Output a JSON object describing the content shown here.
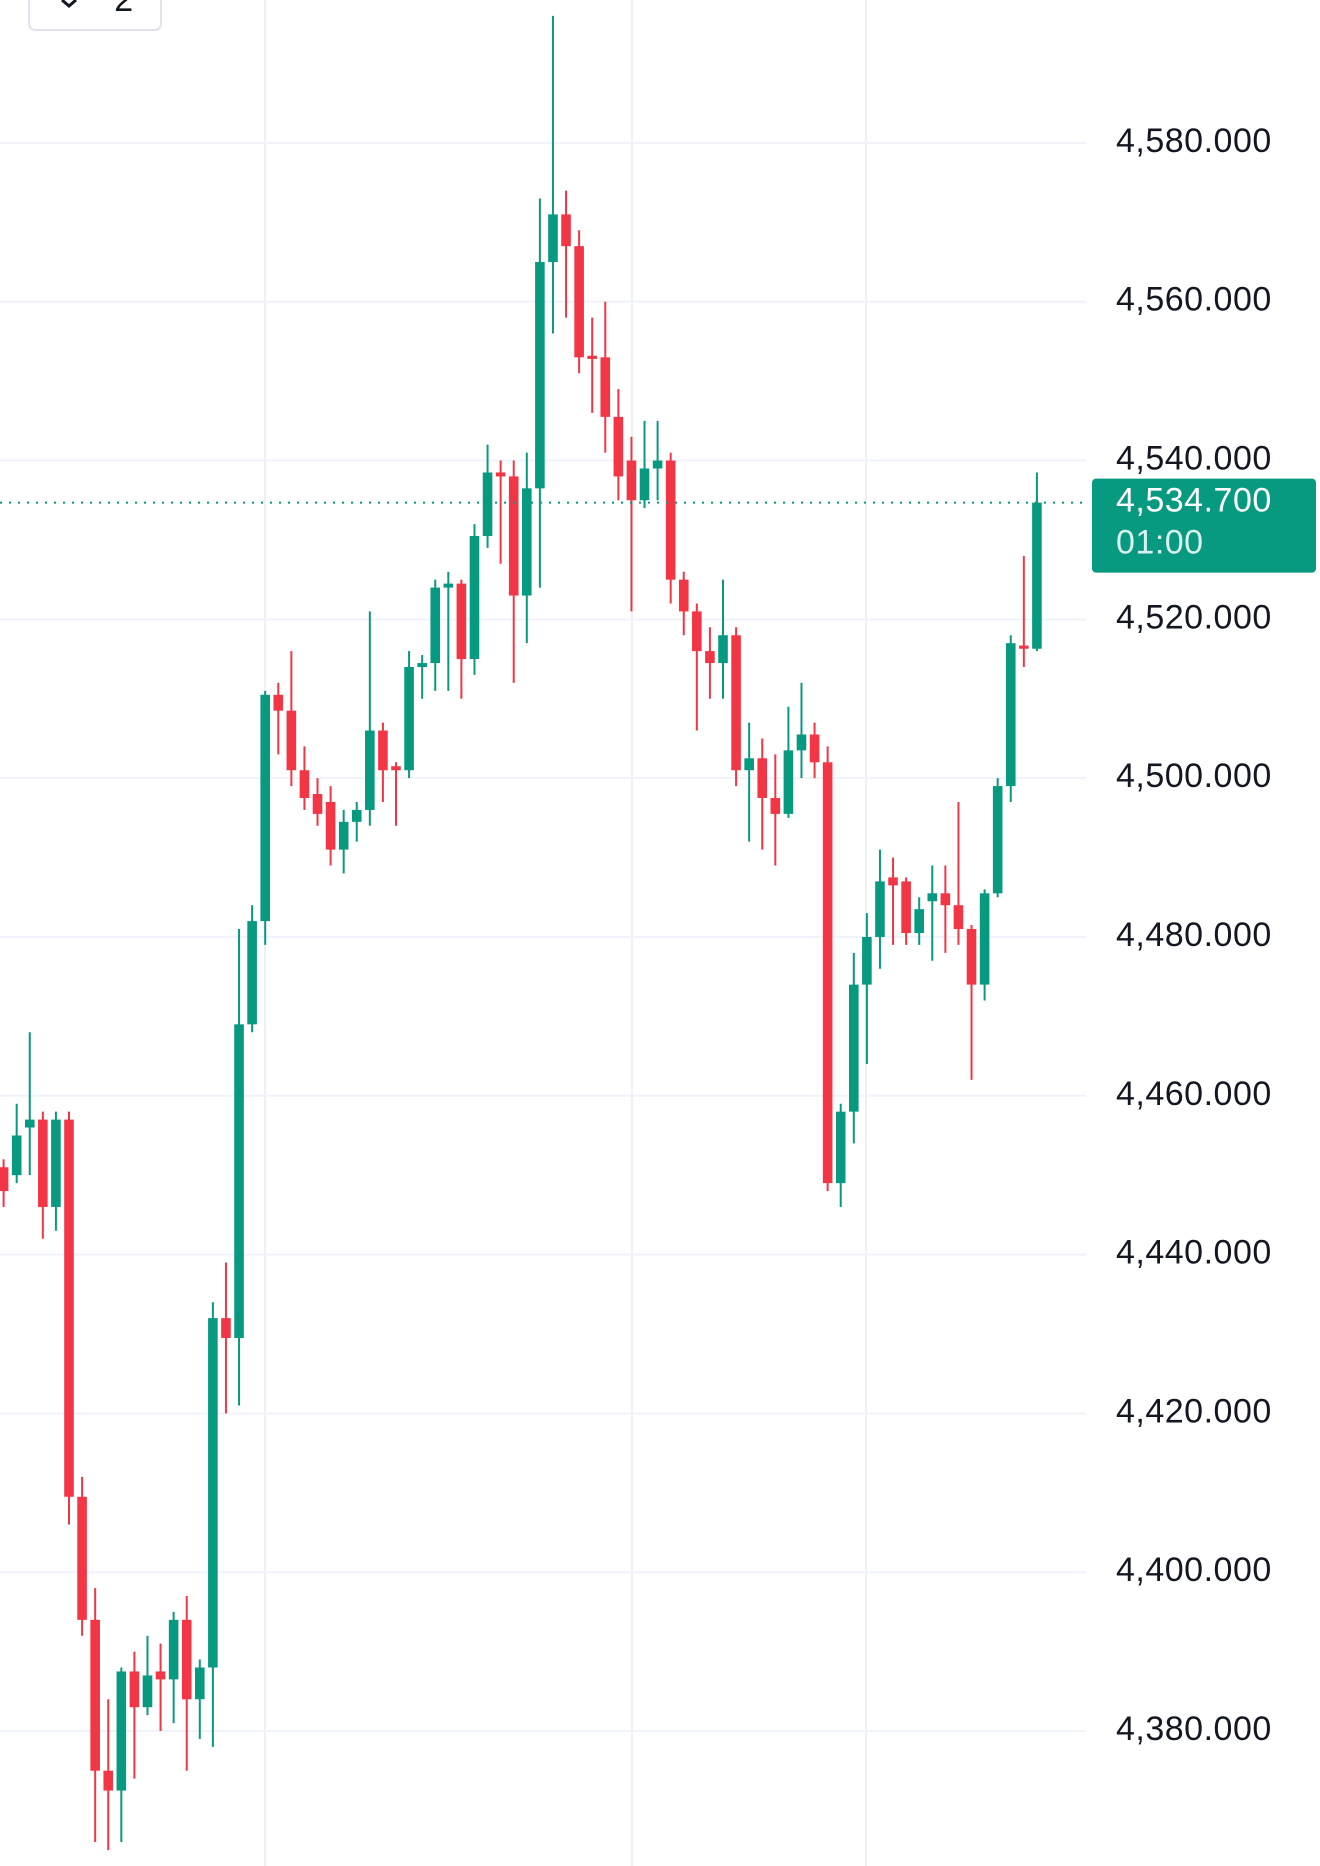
{
  "toolbar_badge": "2",
  "chart_data": {
    "type": "candlestick",
    "up_color": "#089981",
    "down_color": "#f23645",
    "grid": true,
    "ylim": [
      4363,
      4598
    ],
    "yticks": [
      {
        "value": 4380,
        "label": "4,380.000"
      },
      {
        "value": 4400,
        "label": "4,400.000"
      },
      {
        "value": 4420,
        "label": "4,420.000"
      },
      {
        "value": 4440,
        "label": "4,440.000"
      },
      {
        "value": 4460,
        "label": "4,460.000"
      },
      {
        "value": 4480,
        "label": "4,480.000"
      },
      {
        "value": 4500,
        "label": "4,500.000"
      },
      {
        "value": 4520,
        "label": "4,520.000"
      },
      {
        "value": 4540,
        "label": "4,540.000"
      },
      {
        "value": 4560,
        "label": "4,560.000"
      },
      {
        "value": 4580,
        "label": "4,580.000"
      }
    ],
    "last_price": {
      "value": 4534.7,
      "label": "4,534.700"
    },
    "countdown": "01:00",
    "open": [
      4451,
      4450,
      4456,
      4457,
      4446,
      4457,
      4409.5,
      4394,
      4375,
      4372.5,
      4387.5,
      4383,
      4387.5,
      4386.5,
      4394,
      4384,
      4388,
      4432,
      4429.5,
      4469,
      4482,
      4510.5,
      4508.5,
      4501,
      4498,
      4497,
      4491,
      4494.5,
      4496,
      4506,
      4501.5,
      4501,
      4514,
      4514.5,
      4524,
      4524.5,
      4515,
      4530.5,
      4538.5,
      4538,
      4523,
      4536.5,
      4565,
      4571,
      4567,
      4553.2,
      4553,
      4545.5,
      4540,
      4535,
      4539,
      4540,
      4525,
      4521,
      4516,
      4514.5,
      4518,
      4501,
      4502.5,
      4497.5,
      4495.5,
      4503.5,
      4505.5,
      4502,
      4449,
      4458,
      4474,
      4480,
      4487.5,
      4487,
      4480.5,
      4484.5,
      4485.5,
      4484,
      4481,
      4474,
      4485.5,
      4499,
      4516.7,
      4516.3
    ],
    "high": [
      4452,
      4459,
      4468,
      4458,
      4458,
      4458,
      4412,
      4398,
      4384,
      4388,
      4390,
      4392,
      4391,
      4395,
      4397,
      4389,
      4434,
      4439,
      4481,
      4484,
      4511,
      4512,
      4516,
      4504,
      4500,
      4499,
      4496,
      4497,
      4521,
      4507,
      4502,
      4516,
      4515.5,
      4525,
      4526,
      4525,
      4532,
      4542,
      4540,
      4540,
      4541,
      4573,
      4596,
      4574,
      4569,
      4558,
      4560,
      4549,
      4543,
      4545,
      4545,
      4541,
      4526,
      4522,
      4519,
      4525,
      4519,
      4507,
      4505,
      4503,
      4509,
      4512,
      4507,
      4504,
      4459,
      4478,
      4483,
      4491,
      4490,
      4487.5,
      4485,
      4489,
      4489,
      4497,
      4481.5,
      4486,
      4500,
      4518,
      4528,
      4538.5
    ],
    "low": [
      4446,
      4449,
      4450,
      4442,
      4443,
      4406,
      4392,
      4366,
      4365,
      4366,
      4374,
      4382,
      4380,
      4381,
      4375,
      4379,
      4378,
      4420,
      4421,
      4468,
      4479,
      4503,
      4499,
      4496,
      4494,
      4489,
      4488,
      4492,
      4494,
      4497,
      4494,
      4500,
      4510,
      4511,
      4511,
      4510,
      4513,
      4529,
      4527,
      4512,
      4517,
      4524,
      4556,
      4558,
      4551,
      4546,
      4541,
      4535,
      4521,
      4534,
      4535,
      4522,
      4518,
      4506,
      4510,
      4510,
      4499,
      4492,
      4491,
      4489,
      4495,
      4500,
      4500,
      4448,
      4446,
      4454,
      4464,
      4476,
      4479,
      4479,
      4479,
      4477,
      4478,
      4479,
      4462,
      4472,
      4485,
      4497,
      4514,
      4516
    ],
    "close": [
      4448,
      4455,
      4457,
      4446,
      4457,
      4409.5,
      4394,
      4375,
      4372.5,
      4387.5,
      4383,
      4387,
      4386.5,
      4394,
      4384,
      4388,
      4432,
      4429.5,
      4469,
      4482,
      4510.5,
      4508.5,
      4501,
      4497.5,
      4495.5,
      4491,
      4494.5,
      4496,
      4506,
      4501,
      4501,
      4514,
      4514.5,
      4524,
      4524.5,
      4515,
      4530.5,
      4538.5,
      4538,
      4523,
      4536.5,
      4565,
      4571,
      4567,
      4553,
      4552.8,
      4545.5,
      4538,
      4535,
      4539,
      4540,
      4525,
      4521,
      4516,
      4514.5,
      4518,
      4501,
      4502.5,
      4497.5,
      4495.5,
      4503.5,
      4505.5,
      4502,
      4449,
      4458,
      4474,
      4480,
      4487,
      4486.5,
      4480.5,
      4483.5,
      4485.5,
      4484,
      4481,
      4474,
      4485.5,
      4499,
      4517,
      4516.3,
      4534.7
    ]
  }
}
